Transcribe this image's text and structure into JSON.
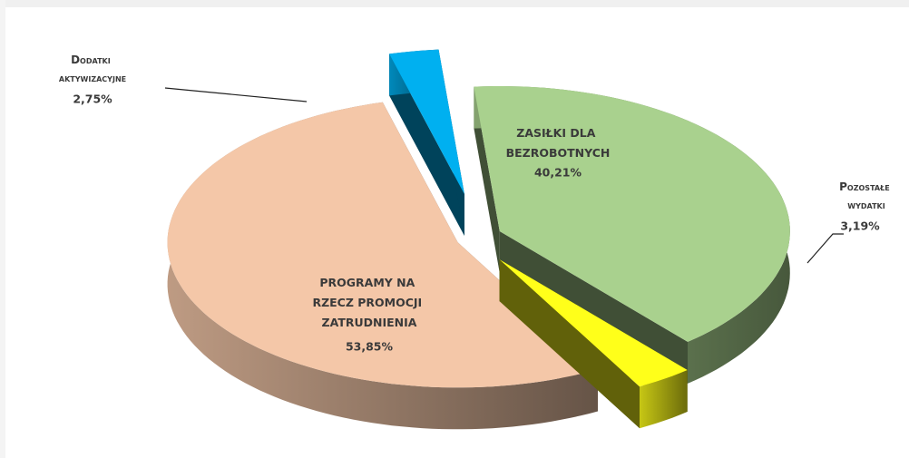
{
  "chart_data": {
    "type": "pie",
    "categories": [
      "Dodatki aktywizacyjne",
      "ZASIŁKI DLA BEZROBOTNYCH",
      "Pozostałe wydatki",
      "PROGRAMY NA RZECZ PROMOCJI ZATRUDNIENIA"
    ],
    "values": [
      2.75,
      40.21,
      3.19,
      53.85
    ],
    "value_labels": [
      "2,75%",
      "40,21%",
      "3,19%",
      "53,85%"
    ],
    "colors": [
      "#00b0f0",
      "#a9d18e",
      "#ffff1a",
      "#f4c7a8"
    ]
  }
}
